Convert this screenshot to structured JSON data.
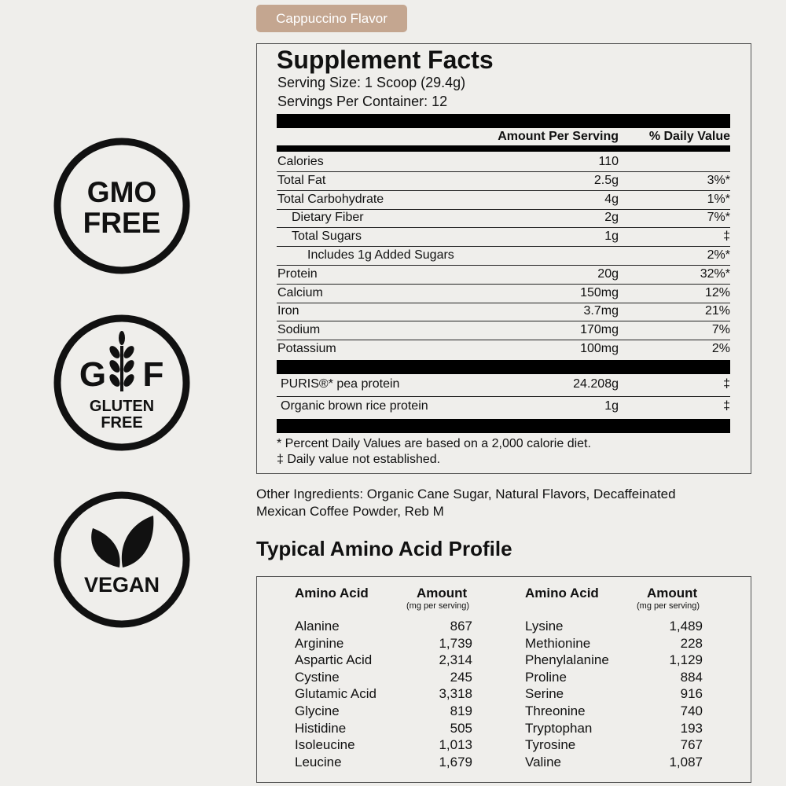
{
  "flavor_tag": "Cappuccino Flavor",
  "badges": [
    {
      "lines": [
        "GMO",
        "FREE"
      ]
    },
    {
      "lines": [
        "G",
        "F",
        "GLUTEN",
        "FREE"
      ]
    },
    {
      "lines": [
        "VEGAN"
      ]
    }
  ],
  "supplement_facts": {
    "title": "Supplement Facts",
    "serving_size": "Serving Size: 1 Scoop (29.4g)",
    "servings_per_container": "Servings Per Container: 12",
    "columns": [
      "Amount Per Serving",
      "% Daily Value"
    ],
    "rows": [
      {
        "name": "Calories",
        "amount": "110"
      },
      {
        "name": "Total Fat",
        "amount": "2.5g",
        "dv": "3%*"
      },
      {
        "name": "Total Carbohydrate",
        "amount": "4g",
        "dv": "1%*"
      },
      {
        "name": "Dietary Fiber",
        "amount": "2g",
        "dv": "7%*"
      },
      {
        "name": "Total Sugars",
        "amount": "1g",
        "dv": "‡"
      },
      {
        "name": "Includes 1g Added Sugars",
        "dv": "2%*"
      },
      {
        "name": "Protein",
        "amount": "20g",
        "dv": "32%*"
      },
      {
        "name": "Calcium",
        "amount": "150mg",
        "dv": "12%"
      },
      {
        "name": "Iron",
        "amount": "3.7mg",
        "dv": "21%"
      },
      {
        "name": "Sodium",
        "amount": "170mg",
        "dv": "7%"
      },
      {
        "name": "Potassium",
        "amount": "100mg",
        "dv": "2%"
      }
    ],
    "blend_rows": [
      {
        "name": "PURIS®* pea protein",
        "amount": "24.208g",
        "dv": "‡"
      },
      {
        "name": "Organic brown rice protein",
        "amount": "1g",
        "dv": "‡"
      }
    ],
    "footnotes": [
      "* Percent Daily Values are based on a 2,000 calorie diet.",
      "‡ Daily value not established."
    ]
  },
  "other_ingredients": "Other Ingredients: Organic Cane Sugar, Natural Flavors, Decaffeinated Mexican Coffee Powder, Reb M",
  "amino_profile": {
    "title": "Typical Amino Acid Profile",
    "header": {
      "name": "Amino Acid",
      "amount": "Amount",
      "unit": "(mg per serving)"
    },
    "left": [
      [
        "Alanine",
        "867"
      ],
      [
        "Arginine",
        "1,739"
      ],
      [
        "Aspartic Acid",
        "2,314"
      ],
      [
        "Cystine",
        "245"
      ],
      [
        "Glutamic Acid",
        "3,318"
      ],
      [
        "Glycine",
        "819"
      ],
      [
        "Histidine",
        "505"
      ],
      [
        "Isoleucine",
        "1,013"
      ],
      [
        "Leucine",
        "1,679"
      ]
    ],
    "right": [
      [
        "Lysine",
        "1,489"
      ],
      [
        "Methionine",
        "228"
      ],
      [
        "Phenylalanine",
        "1,129"
      ],
      [
        "Proline",
        "884"
      ],
      [
        "Serine",
        "916"
      ],
      [
        "Threonine",
        "740"
      ],
      [
        "Tryptophan",
        "193"
      ],
      [
        "Tyrosine",
        "767"
      ],
      [
        "Valine",
        "1,087"
      ]
    ]
  }
}
